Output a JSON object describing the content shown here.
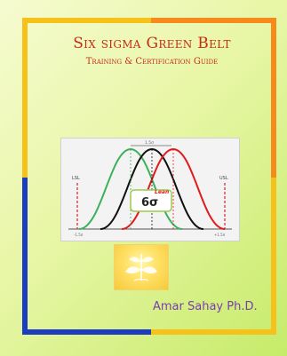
{
  "book": {
    "title": "Six sigma Green Belt",
    "subtitle": "Training & Certification Guide",
    "author": "Amar Sahay Ph.D."
  },
  "figure": {
    "lsl_label": "LSL",
    "usl_label": "USL",
    "lean_label": "Lean",
    "sigma_label": "6σ",
    "shift_label": "1.5σ",
    "axis_left_label": "-1.5σ",
    "axis_right_label": "+1.5σ",
    "curve_colors": {
      "green": "#3cb15b",
      "black": "#111111",
      "red": "#e01b1b"
    }
  },
  "frame_colors": {
    "orange": "#f68a1a",
    "yellow": "#f6c21a",
    "blue": "#1c3dbf",
    "light_green": "#b4e45b"
  }
}
